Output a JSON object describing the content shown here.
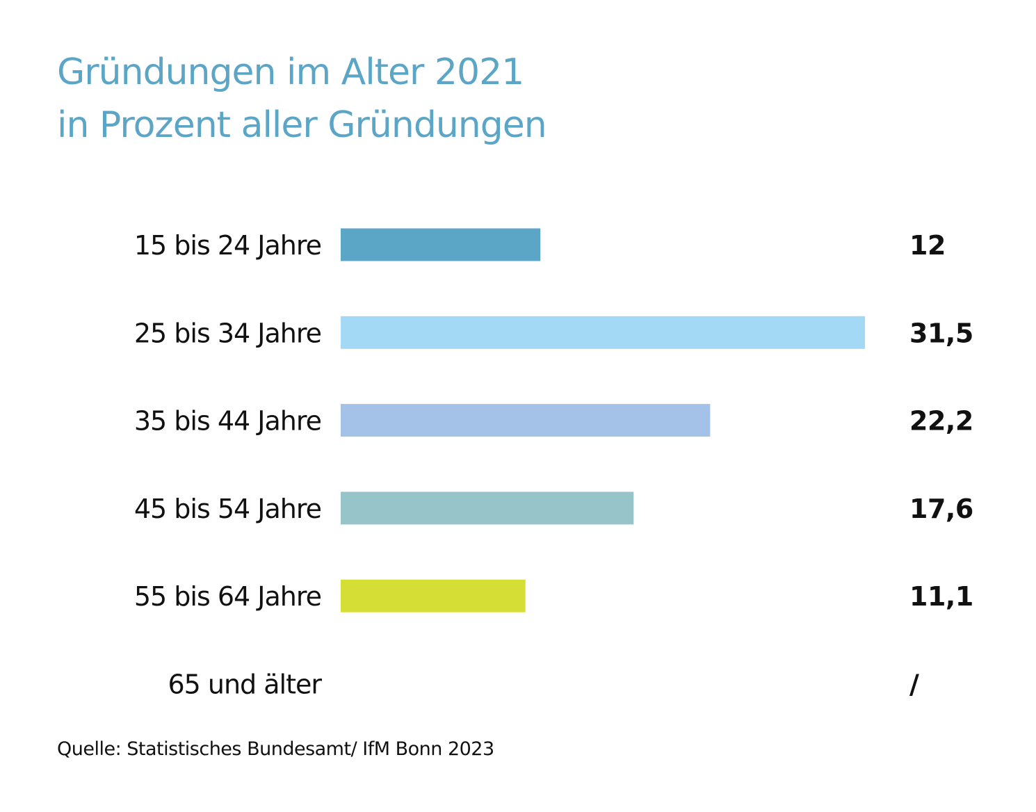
{
  "chart_data": {
    "type": "bar",
    "orientation": "horizontal",
    "title": "Gründungen im Alter 2021",
    "subtitle": "in Prozent aller Gründungen",
    "categories": [
      "15 bis 24 Jahre",
      "25 bis 34 Jahre",
      "35 bis 44 Jahre",
      "45 bis 54 Jahre",
      "55 bis 64 Jahre",
      "65 und älter"
    ],
    "values": [
      12,
      31.5,
      22.2,
      17.6,
      11.1,
      null
    ],
    "value_labels": [
      "12",
      "31,5",
      "22,2",
      "17,6",
      "11,1",
      "/"
    ],
    "colors": [
      "#5ba5c7",
      "#a3d9f5",
      "#a4c2e7",
      "#96c4c9",
      "#d5de35",
      null
    ],
    "xlabel": "",
    "ylabel": "",
    "xlim": [
      0,
      31.5
    ],
    "grid": false,
    "legend": "none"
  },
  "source": "Quelle: Statistisches Bundesamt/ IfM Bonn 2023"
}
